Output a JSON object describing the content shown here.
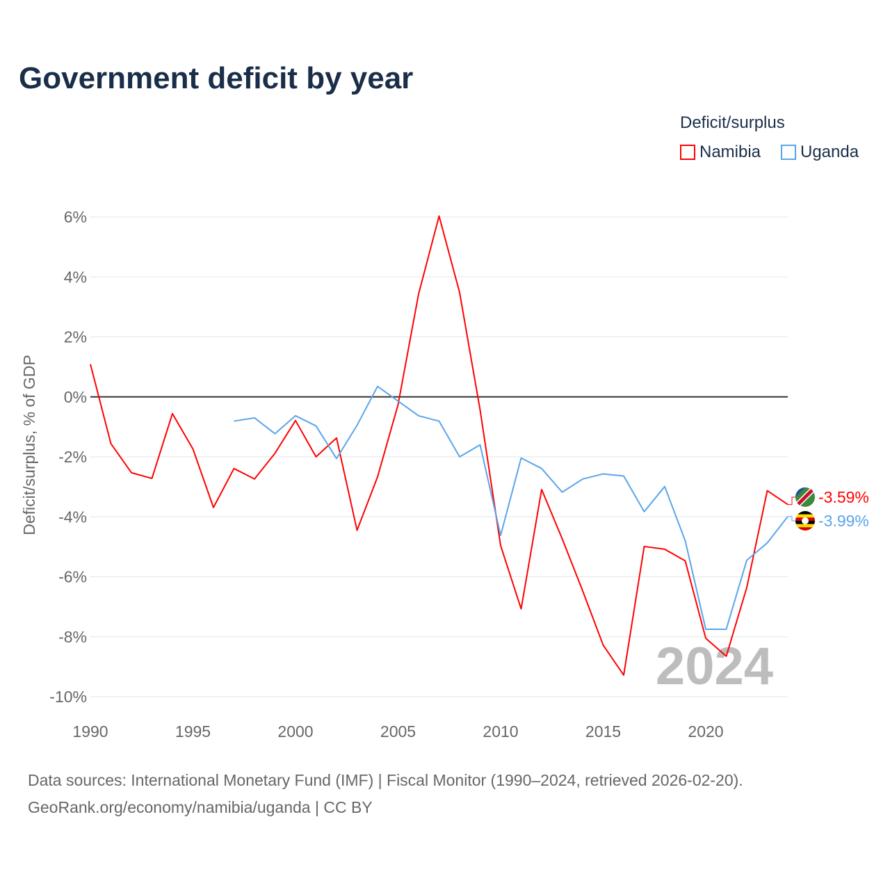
{
  "title": "Government deficit by year",
  "legend": {
    "title": "Deficit/surplus",
    "items": [
      {
        "name": "Namibia",
        "color": "#ff0000"
      },
      {
        "name": "Uganda",
        "color": "#5aa5e8"
      }
    ]
  },
  "watermark_year": "2024",
  "footer": {
    "line1": "Data sources: International Monetary Fund (IMF) | Fiscal Monitor (1990–2024, retrieved 2026-02-20).",
    "line2": "GeoRank.org/economy/namibia/uganda | CC BY"
  },
  "chart_data": {
    "type": "line",
    "title": "Government deficit by year",
    "xlabel": "",
    "ylabel": "Deficit/surplus, % of GDP",
    "xlim": [
      1990,
      2024
    ],
    "ylim": [
      -10,
      6
    ],
    "x_ticks": [
      1990,
      1995,
      2000,
      2005,
      2010,
      2015,
      2020
    ],
    "y_ticks": [
      6,
      4,
      2,
      0,
      -2,
      -4,
      -6,
      -8,
      -10
    ],
    "y_tick_labels": [
      "6%",
      "4%",
      "2%",
      "0%",
      "-2%",
      "-4%",
      "-6%",
      "-8%",
      "-10%"
    ],
    "grid": true,
    "legend_position": "top-right",
    "series": [
      {
        "name": "Namibia",
        "color": "#ff0000",
        "end_label": "-3.59%",
        "x_start": 1990,
        "values": [
          1.09,
          -1.56,
          -2.53,
          -2.72,
          -0.56,
          -1.74,
          -3.69,
          -2.39,
          -2.74,
          -1.88,
          -0.79,
          -2.0,
          -1.37,
          -4.45,
          -2.67,
          -0.26,
          3.43,
          6.03,
          3.48,
          -0.44,
          -4.96,
          -7.07,
          -3.09,
          -4.73,
          -6.47,
          -8.28,
          -9.28,
          -4.99,
          -5.08,
          -5.47,
          -8.05,
          -8.65,
          -6.36,
          -3.13,
          -3.59
        ]
      },
      {
        "name": "Uganda",
        "color": "#5aa5e8",
        "end_label": "-3.99%",
        "x_start": 1997,
        "values": [
          -0.81,
          -0.7,
          -1.23,
          -0.63,
          -0.97,
          -2.06,
          -0.95,
          0.35,
          -0.14,
          -0.63,
          -0.81,
          -2.0,
          -1.6,
          -4.62,
          -2.04,
          -2.39,
          -3.18,
          -2.74,
          -2.57,
          -2.64,
          -3.83,
          -2.99,
          -4.8,
          -7.75,
          -7.75,
          -5.45,
          -4.87,
          -3.99
        ]
      }
    ]
  }
}
